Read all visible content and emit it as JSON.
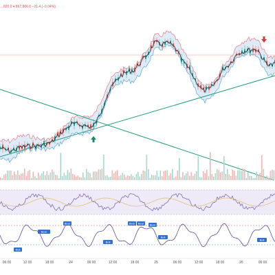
{
  "header": {
    "quote_line": "…820.0 ▾ 867,806.0  −21.4 (−0.04%)"
  },
  "time_axis": {
    "labels": [
      "06:00",
      "12:00",
      "18:00",
      "24",
      "06:00",
      "12:00",
      "18:00",
      "25",
      "06:00",
      "12:00",
      "18:00",
      "26",
      "06:00"
    ]
  },
  "signals": {
    "up_arrow": "buy-signal",
    "down_arrow": "sell-signal",
    "badges": [
      "Bear",
      "Bear",
      "Bear",
      "Bear",
      "Bear",
      "Bull",
      "Bull",
      "Bull",
      "Bull",
      "Bear"
    ]
  },
  "colors": {
    "price_line": "#2d2d2d",
    "band_upper": "#e57a80",
    "band_lower": "#5aa9d6",
    "band_fill": "#dbe9f6",
    "trendline": "#1a9c7a",
    "volume_up": "#a8d8cc",
    "volume_down": "#f2b6b2",
    "rsi_line": "#7d6bb5",
    "rsi_fill": "#eeeaf7",
    "oscillator_line": "#5a4a9c",
    "badge_blue": "#2f6fd1",
    "arrow_up": "#17876a",
    "arrow_down": "#d53a3a"
  }
}
